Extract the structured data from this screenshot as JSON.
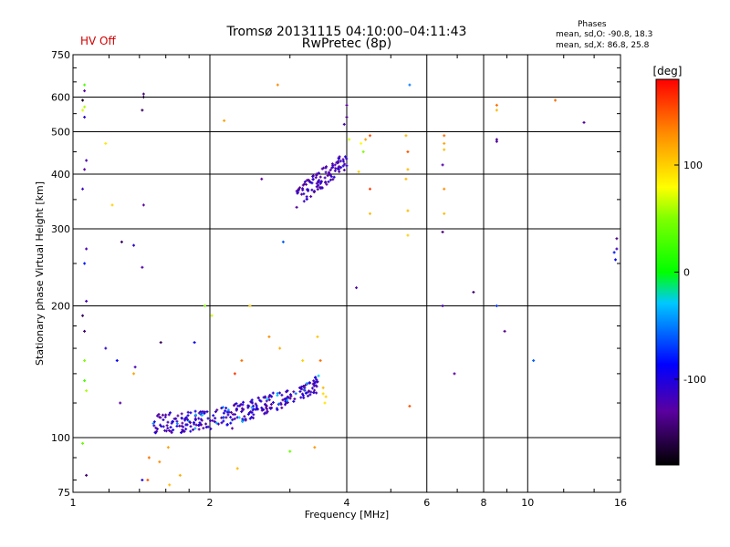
{
  "header": {
    "title_line1": "Tromsø 20131115 04:10:00–04:11:43",
    "title_line2": "RwPretec (8p)",
    "hv_status": "HV Off",
    "phase_header": "Phases",
    "phase_o": "mean, sd,O: -90.8, 18.3",
    "phase_x": "mean, sd,X:  86.8, 25.8"
  },
  "colors": {
    "hv_status": "#d40000"
  },
  "chart_data": {
    "type": "scatter",
    "title": "Tromsø 20131115 04:10:00–04:11:43",
    "xlabel": "Frequency [MHz]",
    "ylabel": "Stationary phase Virtual Height [km]",
    "xscale": "log",
    "yscale": "log",
    "xlim": [
      1,
      16
    ],
    "ylim": [
      75,
      750
    ],
    "xticks": [
      1,
      2,
      4,
      6,
      8,
      10,
      16
    ],
    "xtick_labels": [
      "1",
      "2",
      "4",
      "6",
      "8",
      "10",
      "16"
    ],
    "yticks": [
      75,
      100,
      200,
      300,
      400,
      500,
      600,
      750
    ],
    "ytick_labels": [
      "75",
      "100",
      "200",
      "300",
      "400",
      "500",
      "600",
      "750"
    ],
    "grid": true,
    "colorbar": {
      "label": "[deg]",
      "range": [
        -180,
        180
      ],
      "ticks": [
        -100,
        0,
        100
      ],
      "tick_labels": [
        "-100",
        "0",
        "100"
      ]
    },
    "clusters": [
      {
        "name": "E-region trace",
        "x_range": [
          1.5,
          3.5
        ],
        "y_range": [
          105,
          135
        ],
        "phase_deg": -115,
        "count": 300
      },
      {
        "name": "F-region trace",
        "x_range": [
          3.1,
          4.0
        ],
        "y_range": [
          355,
          440
        ],
        "phase_deg": -120,
        "count": 110
      }
    ],
    "points": [
      {
        "x": 1.06,
        "y": 640,
        "phase": 30
      },
      {
        "x": 1.06,
        "y": 620,
        "phase": -130
      },
      {
        "x": 1.05,
        "y": 590,
        "phase": -170
      },
      {
        "x": 1.06,
        "y": 570,
        "phase": 60
      },
      {
        "x": 1.05,
        "y": 560,
        "phase": 70
      },
      {
        "x": 1.06,
        "y": 540,
        "phase": -110
      },
      {
        "x": 1.07,
        "y": 430,
        "phase": -125
      },
      {
        "x": 1.06,
        "y": 410,
        "phase": -130
      },
      {
        "x": 1.05,
        "y": 370,
        "phase": -115
      },
      {
        "x": 1.07,
        "y": 270,
        "phase": -120
      },
      {
        "x": 1.06,
        "y": 250,
        "phase": -80
      },
      {
        "x": 1.07,
        "y": 205,
        "phase": -120
      },
      {
        "x": 1.05,
        "y": 190,
        "phase": -150
      },
      {
        "x": 1.06,
        "y": 175,
        "phase": -145
      },
      {
        "x": 1.06,
        "y": 150,
        "phase": 50
      },
      {
        "x": 1.06,
        "y": 135,
        "phase": 30
      },
      {
        "x": 1.07,
        "y": 128,
        "phase": 60
      },
      {
        "x": 1.05,
        "y": 97,
        "phase": 40
      },
      {
        "x": 1.07,
        "y": 82,
        "phase": -145
      },
      {
        "x": 1.43,
        "y": 610,
        "phase": -140
      },
      {
        "x": 1.43,
        "y": 600,
        "phase": -165
      },
      {
        "x": 1.42,
        "y": 560,
        "phase": -150
      },
      {
        "x": 1.43,
        "y": 340,
        "phase": -130
      },
      {
        "x": 1.42,
        "y": 245,
        "phase": -125
      },
      {
        "x": 1.28,
        "y": 280,
        "phase": -150
      },
      {
        "x": 1.36,
        "y": 275,
        "phase": -110
      },
      {
        "x": 1.18,
        "y": 470,
        "phase": 90
      },
      {
        "x": 1.22,
        "y": 340,
        "phase": 100
      },
      {
        "x": 1.18,
        "y": 160,
        "phase": -110
      },
      {
        "x": 1.25,
        "y": 150,
        "phase": -90
      },
      {
        "x": 1.27,
        "y": 120,
        "phase": -130
      },
      {
        "x": 1.37,
        "y": 145,
        "phase": -120
      },
      {
        "x": 1.36,
        "y": 140,
        "phase": 120
      },
      {
        "x": 1.56,
        "y": 165,
        "phase": -150
      },
      {
        "x": 1.47,
        "y": 90,
        "phase": 140
      },
      {
        "x": 1.55,
        "y": 88,
        "phase": 130
      },
      {
        "x": 1.46,
        "y": 80,
        "phase": 150
      },
      {
        "x": 1.42,
        "y": 80,
        "phase": -100
      },
      {
        "x": 1.63,
        "y": 78,
        "phase": 110
      },
      {
        "x": 1.62,
        "y": 95,
        "phase": 120
      },
      {
        "x": 1.72,
        "y": 82,
        "phase": 115
      },
      {
        "x": 1.85,
        "y": 165,
        "phase": -90
      },
      {
        "x": 1.95,
        "y": 200,
        "phase": 50
      },
      {
        "x": 2.02,
        "y": 190,
        "phase": 70
      },
      {
        "x": 2.27,
        "y": 140,
        "phase": 160
      },
      {
        "x": 2.3,
        "y": 85,
        "phase": 110
      },
      {
        "x": 2.24,
        "y": 105,
        "phase": -130
      },
      {
        "x": 2.35,
        "y": 150,
        "phase": 140
      },
      {
        "x": 2.45,
        "y": 200,
        "phase": 100
      },
      {
        "x": 2.7,
        "y": 170,
        "phase": 130
      },
      {
        "x": 2.85,
        "y": 160,
        "phase": 115
      },
      {
        "x": 3.2,
        "y": 150,
        "phase": 100
      },
      {
        "x": 3.45,
        "y": 170,
        "phase": 105
      },
      {
        "x": 3.5,
        "y": 150,
        "phase": 140
      },
      {
        "x": 3.4,
        "y": 95,
        "phase": 125
      },
      {
        "x": 3.0,
        "y": 93,
        "phase": 40
      },
      {
        "x": 3.55,
        "y": 130,
        "phase": 110
      },
      {
        "x": 3.55,
        "y": 126,
        "phase": 95
      },
      {
        "x": 3.6,
        "y": 124,
        "phase": 100
      },
      {
        "x": 3.58,
        "y": 120,
        "phase": 90
      },
      {
        "x": 2.15,
        "y": 530,
        "phase": 120
      },
      {
        "x": 2.6,
        "y": 390,
        "phase": -130
      },
      {
        "x": 2.82,
        "y": 640,
        "phase": 130
      },
      {
        "x": 2.9,
        "y": 280,
        "phase": -60
      },
      {
        "x": 4.0,
        "y": 575,
        "phase": -130
      },
      {
        "x": 4.0,
        "y": 540,
        "phase": -140
      },
      {
        "x": 3.95,
        "y": 520,
        "phase": -120
      },
      {
        "x": 4.05,
        "y": 480,
        "phase": 70
      },
      {
        "x": 4.3,
        "y": 470,
        "phase": 80
      },
      {
        "x": 4.5,
        "y": 490,
        "phase": 150
      },
      {
        "x": 4.4,
        "y": 480,
        "phase": 120
      },
      {
        "x": 4.35,
        "y": 450,
        "phase": 50
      },
      {
        "x": 4.5,
        "y": 370,
        "phase": 160
      },
      {
        "x": 4.5,
        "y": 325,
        "phase": 110
      },
      {
        "x": 4.25,
        "y": 405,
        "phase": 100
      },
      {
        "x": 4.2,
        "y": 220,
        "phase": -125
      },
      {
        "x": 5.5,
        "y": 640,
        "phase": -50
      },
      {
        "x": 5.4,
        "y": 490,
        "phase": 110
      },
      {
        "x": 5.45,
        "y": 450,
        "phase": 150
      },
      {
        "x": 5.45,
        "y": 410,
        "phase": 110
      },
      {
        "x": 5.4,
        "y": 390,
        "phase": 110
      },
      {
        "x": 5.45,
        "y": 330,
        "phase": 110
      },
      {
        "x": 5.45,
        "y": 290,
        "phase": 100
      },
      {
        "x": 5.5,
        "y": 118,
        "phase": 150
      },
      {
        "x": 6.55,
        "y": 490,
        "phase": 140
      },
      {
        "x": 6.55,
        "y": 470,
        "phase": 120
      },
      {
        "x": 6.55,
        "y": 455,
        "phase": 110
      },
      {
        "x": 6.5,
        "y": 420,
        "phase": -125
      },
      {
        "x": 6.55,
        "y": 370,
        "phase": 130
      },
      {
        "x": 6.55,
        "y": 325,
        "phase": 110
      },
      {
        "x": 6.5,
        "y": 295,
        "phase": -140
      },
      {
        "x": 6.5,
        "y": 200,
        "phase": -120
      },
      {
        "x": 6.9,
        "y": 140,
        "phase": -130
      },
      {
        "x": 7.6,
        "y": 215,
        "phase": -145
      },
      {
        "x": 8.55,
        "y": 575,
        "phase": 140
      },
      {
        "x": 8.55,
        "y": 560,
        "phase": 110
      },
      {
        "x": 8.55,
        "y": 475,
        "phase": -125
      },
      {
        "x": 8.55,
        "y": 480,
        "phase": -140
      },
      {
        "x": 8.55,
        "y": 200,
        "phase": -70
      },
      {
        "x": 8.9,
        "y": 175,
        "phase": -135
      },
      {
        "x": 10.3,
        "y": 150,
        "phase": -60
      },
      {
        "x": 11.5,
        "y": 590,
        "phase": 140
      },
      {
        "x": 13.3,
        "y": 525,
        "phase": -125
      },
      {
        "x": 15.7,
        "y": 285,
        "phase": -140
      },
      {
        "x": 15.7,
        "y": 270,
        "phase": -120
      },
      {
        "x": 15.5,
        "y": 265,
        "phase": -80
      },
      {
        "x": 15.6,
        "y": 255,
        "phase": -90
      }
    ]
  }
}
